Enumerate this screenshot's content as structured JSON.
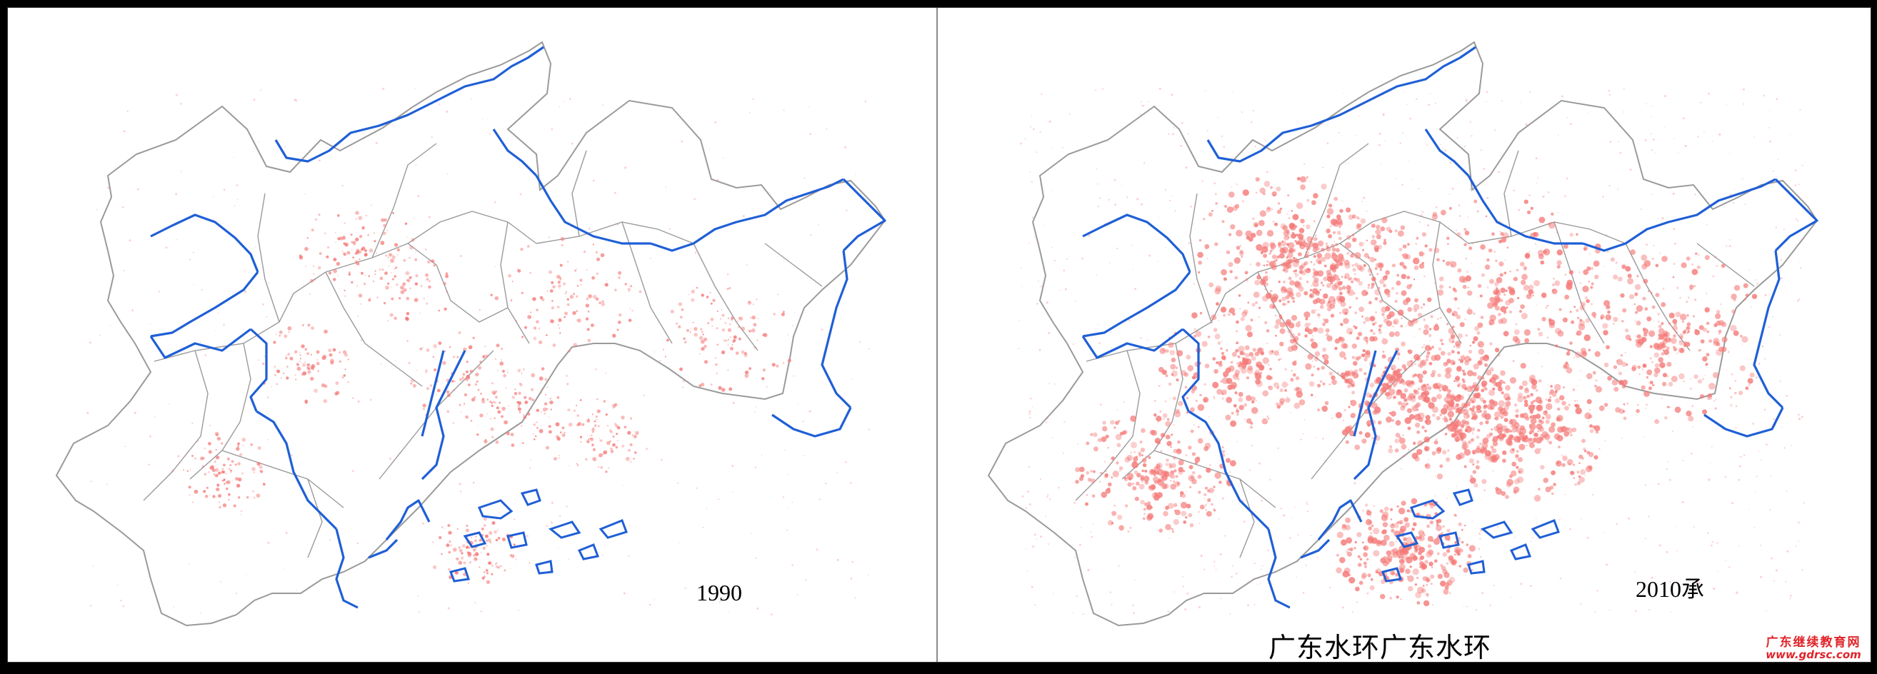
{
  "panels": [
    {
      "id": "left",
      "year": "1990",
      "density": 0.35
    },
    {
      "id": "right",
      "year": "2010承",
      "density": 1.0
    }
  ],
  "caption": "广东水环广东水环",
  "watermark": {
    "name": "广东继续教育网",
    "url": "www.gdrsc.com"
  },
  "colors": {
    "urban": "#f47a78",
    "boundary": "#9a9a9a",
    "coast": "#1f5fd6",
    "background": "#ffffff"
  }
}
